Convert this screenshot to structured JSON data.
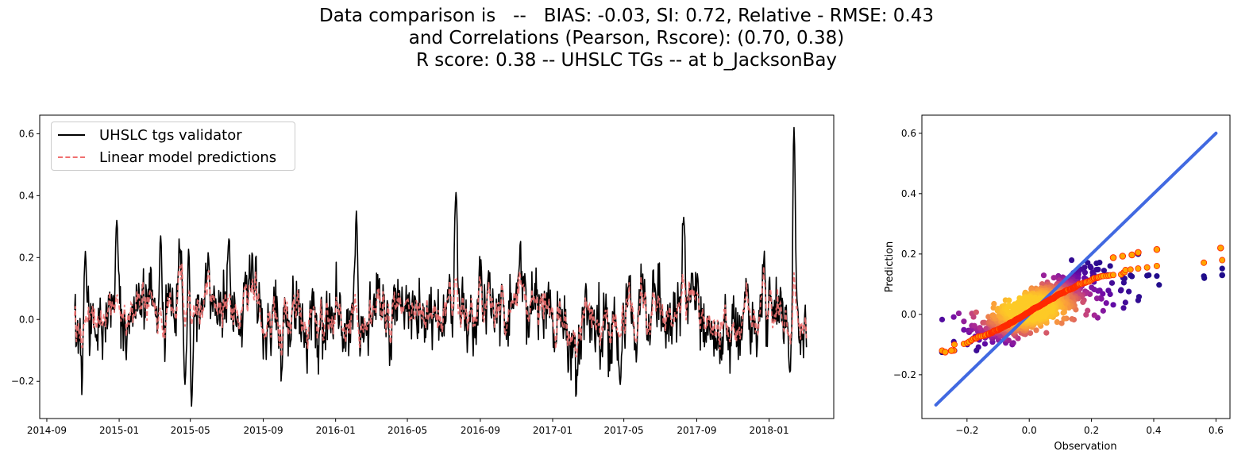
{
  "figure": {
    "title_lines": [
      "Data comparison is   --   BIAS: -0.03, SI: 0.72, Relative - RMSE: 0.43",
      "and Correlations (Pearson, Rscore): (0.70, 0.38)",
      "R score: 0.38 -- UHSLC TGs -- at b_JacksonBay"
    ]
  },
  "chart_data": [
    {
      "type": "line",
      "title": "",
      "xlabel": "",
      "ylabel": "",
      "x_range": [
        "2014-10-18",
        "2018-03-05"
      ],
      "xlim": [
        "2014-08-20",
        "2018-04-20"
      ],
      "ylim": [
        -0.32,
        0.66
      ],
      "x_ticks": [
        "2014-09-01",
        "2015-01-01",
        "2015-05-01",
        "2015-09-01",
        "2016-01-01",
        "2016-05-01",
        "2016-09-01",
        "2017-01-01",
        "2017-05-01",
        "2017-09-01",
        "2018-01-01"
      ],
      "x_tick_labels": [
        "2014-09",
        "2015-01",
        "2015-05",
        "2015-09",
        "2016-01",
        "2016-05",
        "2016-09",
        "2017-01",
        "2017-05",
        "2017-09",
        "2018-01"
      ],
      "y_ticks": [
        -0.2,
        0.0,
        0.2,
        0.4,
        0.6
      ],
      "y_tick_labels": [
        "−0.2",
        "0.0",
        "0.2",
        "0.4",
        "0.6"
      ],
      "legend": "top-left",
      "grid": false,
      "series": [
        {
          "name": "UHSLC tgs validator",
          "color": "#000000",
          "style": "solid"
        },
        {
          "name": "Linear model predictions",
          "color": "#f07070",
          "style": "dashed"
        }
      ],
      "peaks": [
        {
          "date": "2014-11-05",
          "value": 0.22
        },
        {
          "date": "2014-12-28",
          "value": 0.32
        },
        {
          "date": "2015-03-12",
          "value": 0.27
        },
        {
          "date": "2015-04-22",
          "value": -0.21
        },
        {
          "date": "2015-04-30",
          "value": 0.35
        },
        {
          "date": "2015-05-03",
          "value": -0.28
        },
        {
          "date": "2015-07-05",
          "value": 0.26
        },
        {
          "date": "2016-02-05",
          "value": 0.35
        },
        {
          "date": "2016-07-22",
          "value": 0.41
        },
        {
          "date": "2017-04-25",
          "value": -0.21
        },
        {
          "date": "2017-08-10",
          "value": 0.33
        },
        {
          "date": "2018-02-12",
          "value": 0.62
        },
        {
          "date": "2018-02-05",
          "value": -0.17
        }
      ]
    },
    {
      "type": "scatter",
      "title": "",
      "xlabel": "Observation",
      "ylabel": "Prediction",
      "xlim": [
        -0.345,
        0.645
      ],
      "ylim": [
        -0.345,
        0.66
      ],
      "x_ticks": [
        -0.2,
        0.0,
        0.2,
        0.4,
        0.6
      ],
      "x_tick_labels": [
        "−0.2",
        "0.0",
        "0.2",
        "0.4",
        "0.6"
      ],
      "y_ticks": [
        -0.2,
        0.0,
        0.2,
        0.4,
        0.6
      ],
      "y_tick_labels": [
        "−0.2",
        "0.0",
        "0.2",
        "0.4",
        "0.6"
      ],
      "grid": false,
      "identity_line": {
        "from": [
          -0.3,
          -0.3
        ],
        "to": [
          0.6,
          0.6
        ],
        "color": "#4169e1"
      },
      "colormap": [
        "#1f0c8b",
        "#6a0aa8",
        "#b42f8f",
        "#e26a5a",
        "#fb9f3a",
        "#fdca26"
      ],
      "fit_points_color": "#ffa500",
      "fit_points_edge": "#ff2a00",
      "outliers": [
        {
          "x": 0.62,
          "y": 0.13
        },
        {
          "x": 0.615,
          "y": 0.22
        },
        {
          "x": 0.41,
          "y": 0.215
        },
        {
          "x": 0.35,
          "y": 0.2
        },
        {
          "x": -0.28,
          "y": -0.125
        }
      ]
    }
  ]
}
